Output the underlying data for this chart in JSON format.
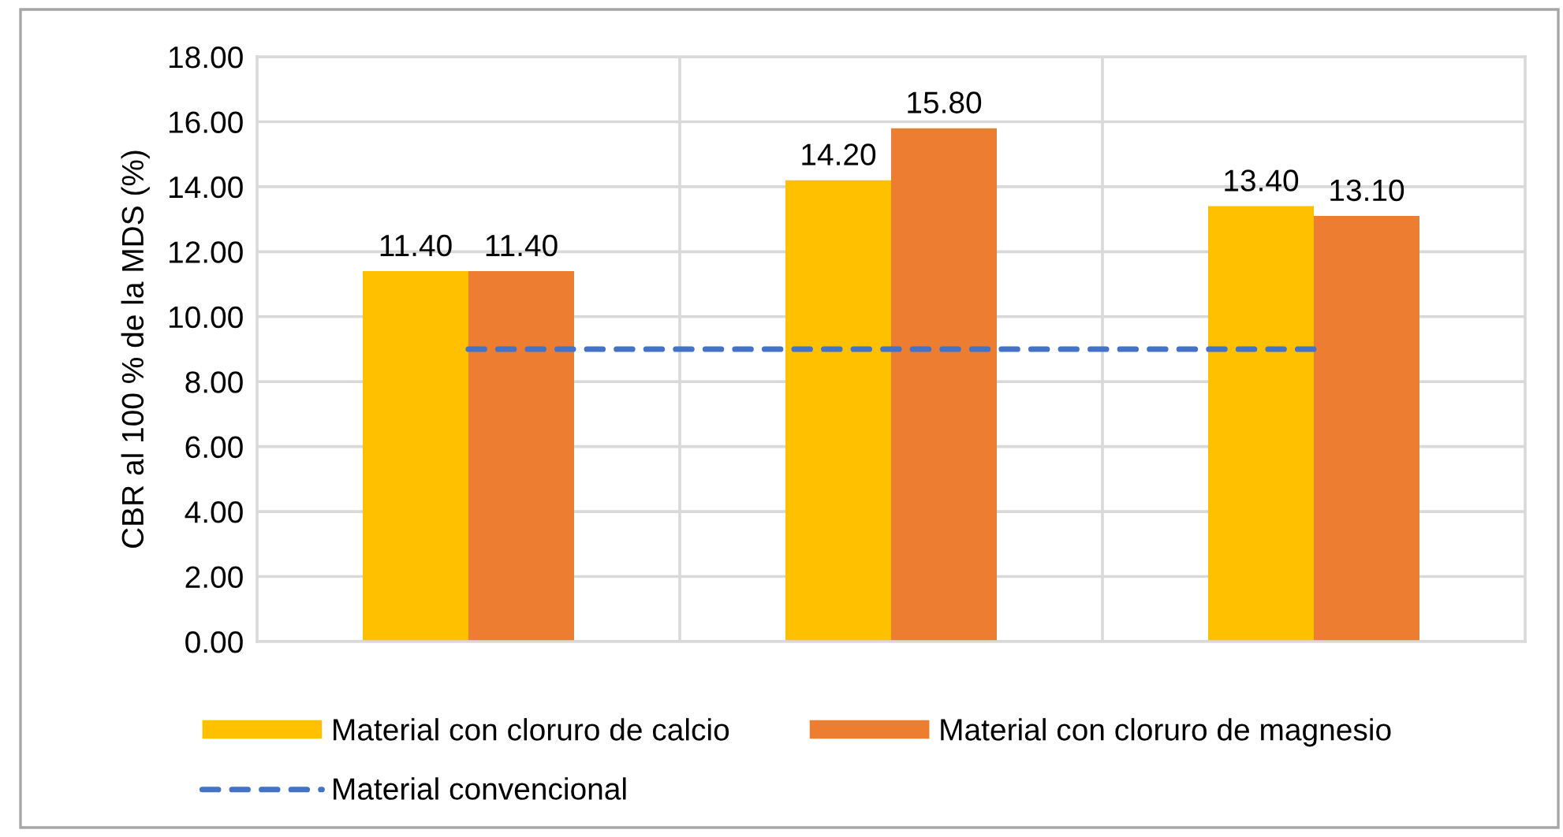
{
  "chart_data": {
    "type": "bar",
    "ylabel": "CBR al 100 % de la MDS (%)",
    "categories": [
      null,
      null,
      null
    ],
    "series": [
      {
        "name": "Material con cloruro de calcio",
        "color": "#ffc000",
        "values": [
          11.4,
          14.2,
          13.4
        ],
        "value_labels": [
          "11.40",
          "14.20",
          "13.40"
        ]
      },
      {
        "name": "Material con cloruro de magnesio",
        "color": "#ed7d31",
        "values": [
          11.4,
          15.8,
          13.1
        ],
        "value_labels": [
          "11.40",
          "15.80",
          "13.10"
        ]
      },
      {
        "name": "Material convencional",
        "type": "line",
        "color": "#4472c4",
        "values": [
          9,
          9,
          9
        ],
        "line_style": "dashed"
      }
    ],
    "ylim": [
      0,
      18
    ],
    "yticks": [
      {
        "value": 0,
        "label": "0.00"
      },
      {
        "value": 2,
        "label": "2.00"
      },
      {
        "value": 4,
        "label": "4.00"
      },
      {
        "value": 6,
        "label": "6.00"
      },
      {
        "value": 8,
        "label": "8.00"
      },
      {
        "value": 10,
        "label": "10.00"
      },
      {
        "value": 12,
        "label": "12.00"
      },
      {
        "value": 14,
        "label": "14.00"
      },
      {
        "value": 16,
        "label": "16.00"
      },
      {
        "value": 18,
        "label": "18.00"
      }
    ],
    "grid": true,
    "legend": "bottom"
  }
}
